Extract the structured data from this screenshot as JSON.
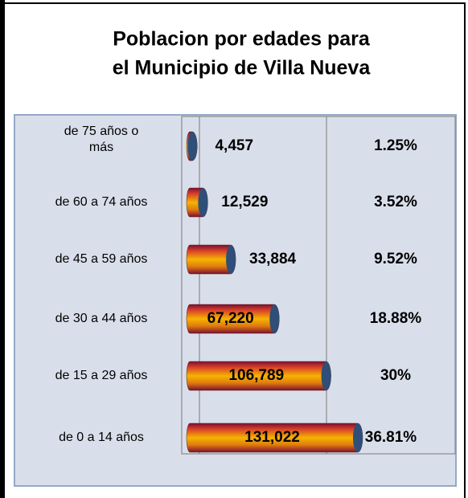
{
  "chart_data": {
    "type": "bar",
    "orientation": "horizontal",
    "title_lines": [
      "Poblacion por edades  para",
      "el Municipio de  Villa Nueva"
    ],
    "categories": [
      [
        "de 75 años  o",
        "más"
      ],
      [
        "de 60 a 74 años"
      ],
      [
        "de 45 a 59 años"
      ],
      [
        "de 30 a 44 años"
      ],
      [
        "de 15 a 29 años"
      ],
      [
        "de  0 a 14 años"
      ]
    ],
    "values": [
      4457,
      12529,
      33884,
      67220,
      106789,
      131022
    ],
    "value_labels": [
      "4,457",
      "12,529",
      "33,884",
      "67,220",
      "106,789",
      "131,022"
    ],
    "percentage_labels": [
      "1.25%",
      "3.52%",
      "9.52%",
      "18.88%",
      "30%",
      "36.81%"
    ],
    "colors": {
      "bar_top": "#7a1030",
      "bar_mid": "#f5b400",
      "bar_cap": "#2f4e78"
    }
  }
}
